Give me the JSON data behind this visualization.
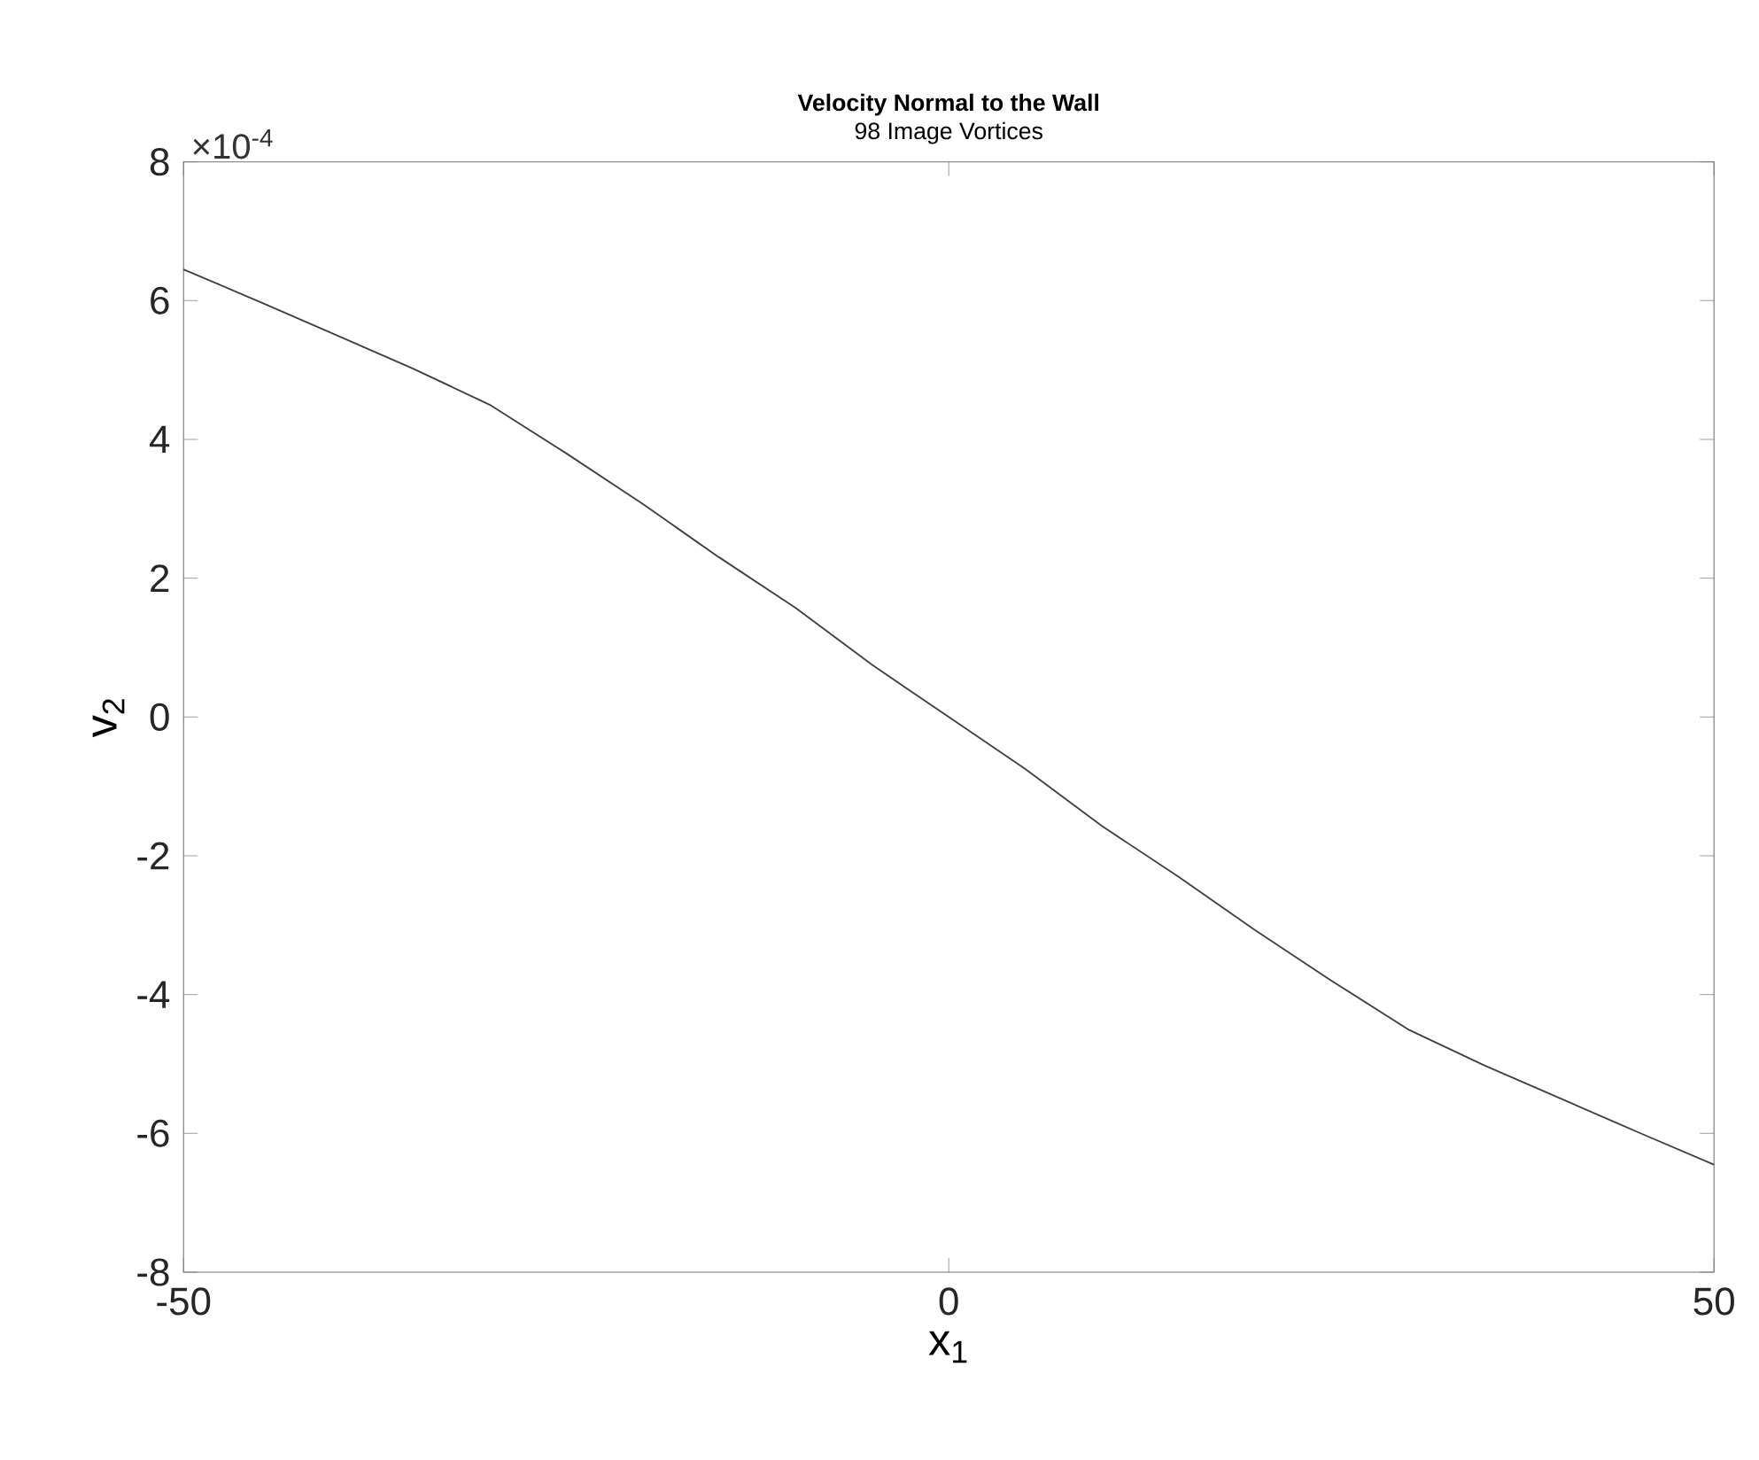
{
  "chart_data": {
    "type": "line",
    "title": "Velocity Normal to the Wall",
    "subtitle": "98 Image Vortices",
    "xlabel": "x$_{1}$",
    "ylabel": "v$_{2}$",
    "annotations": [
      "×10$^{-4}$"
    ],
    "x": [
      -50,
      -45,
      -40,
      -35,
      -30,
      -25,
      -20,
      -15,
      -10,
      -5,
      0,
      5,
      10,
      15,
      20,
      25,
      30,
      35,
      40,
      45,
      50
    ],
    "series": [
      {
        "color": "#404040",
        "values": [
          6.45,
          5.98,
          5.5,
          5.02,
          4.5,
          3.8,
          3.07,
          2.3,
          1.57,
          0.75,
          0,
          -0.75,
          -1.57,
          -2.3,
          -3.07,
          -3.8,
          -4.5,
          -5.02,
          -5.5,
          -5.98,
          -6.45
        ]
      }
    ],
    "xlim": [
      -50,
      50
    ],
    "ylim": [
      -8,
      8
    ],
    "xticks": [
      -50,
      0,
      50
    ],
    "yticks": [
      -8,
      -6,
      -4,
      -2,
      0,
      2,
      4,
      6,
      8
    ]
  }
}
